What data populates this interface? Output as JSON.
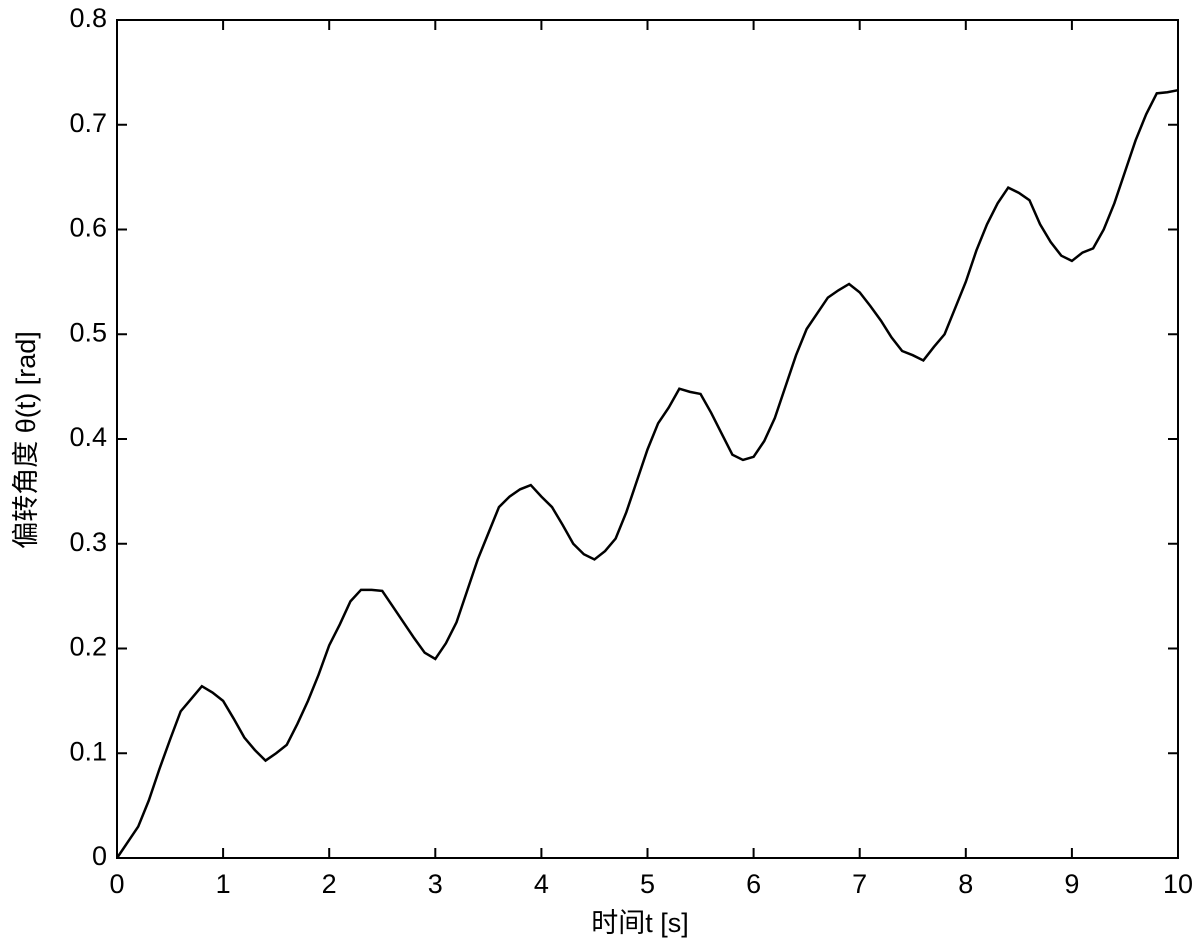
{
  "chart_data": {
    "type": "line",
    "x_label": "时间t [s]",
    "y_label": "偏转角度 θ(t) [rad]",
    "x": [
      0,
      0.1,
      0.2,
      0.3,
      0.4,
      0.5,
      0.6,
      0.7,
      0.8,
      0.9,
      1,
      1.1,
      1.2,
      1.3,
      1.4,
      1.5,
      1.6,
      1.7,
      1.8,
      1.9,
      2,
      2.1,
      2.2,
      2.3,
      2.4,
      2.5,
      2.6,
      2.7,
      2.8,
      2.9,
      3,
      3.1,
      3.2,
      3.3,
      3.4,
      3.5,
      3.6,
      3.7,
      3.8,
      3.9,
      4,
      4.1,
      4.2,
      4.3,
      4.4,
      4.5,
      4.6,
      4.7,
      4.8,
      4.9,
      5,
      5.1,
      5.2,
      5.3,
      5.4,
      5.5,
      5.6,
      5.7,
      5.8,
      5.9,
      6,
      6.1,
      6.2,
      6.3,
      6.4,
      6.5,
      6.6,
      6.7,
      6.8,
      6.9,
      7,
      7.1,
      7.2,
      7.3,
      7.4,
      7.5,
      7.6,
      7.7,
      7.8,
      7.9,
      8,
      8.1,
      8.2,
      8.3,
      8.4,
      8.5,
      8.6,
      8.7,
      8.8,
      8.9,
      9,
      9.1,
      9.2,
      9.3,
      9.4,
      9.5,
      9.6,
      9.7,
      9.8,
      9.9,
      10
    ],
    "series": [
      {
        "color": "#000000",
        "values": [
          0,
          0.015,
          0.03,
          0.055,
          0.085,
          0.113,
          0.14,
          0.152,
          0.164,
          0.158,
          0.15,
          0.133,
          0.115,
          0.103,
          0.093,
          0.1,
          0.108,
          0.128,
          0.15,
          0.175,
          0.203,
          0.223,
          0.245,
          0.256,
          0.256,
          0.255,
          0.24,
          0.225,
          0.21,
          0.196,
          0.19,
          0.205,
          0.225,
          0.255,
          0.285,
          0.31,
          0.335,
          0.345,
          0.352,
          0.356,
          0.345,
          0.335,
          0.318,
          0.3,
          0.29,
          0.285,
          0.293,
          0.305,
          0.33,
          0.36,
          0.39,
          0.415,
          0.43,
          0.448,
          0.445,
          0.443,
          0.425,
          0.405,
          0.385,
          0.38,
          0.383,
          0.398,
          0.42,
          0.45,
          0.48,
          0.505,
          0.52,
          0.535,
          0.542,
          0.548,
          0.54,
          0.527,
          0.513,
          0.497,
          0.484,
          0.48,
          0.475,
          0.488,
          0.5,
          0.525,
          0.55,
          0.58,
          0.605,
          0.625,
          0.64,
          0.635,
          0.628,
          0.605,
          0.588,
          0.575,
          0.57,
          0.578,
          0.582,
          0.6,
          0.625,
          0.655,
          0.685,
          0.71,
          0.73,
          0.731,
          0.733
        ]
      }
    ],
    "xlim": [
      0,
      10
    ],
    "xticks": [
      0,
      1,
      2,
      3,
      4,
      5,
      6,
      7,
      8,
      9,
      10
    ],
    "ylim": [
      0,
      0.8
    ],
    "yticks": [
      0,
      0.1,
      0.2,
      0.3,
      0.4,
      0.5,
      0.6,
      0.7,
      0.8
    ]
  }
}
